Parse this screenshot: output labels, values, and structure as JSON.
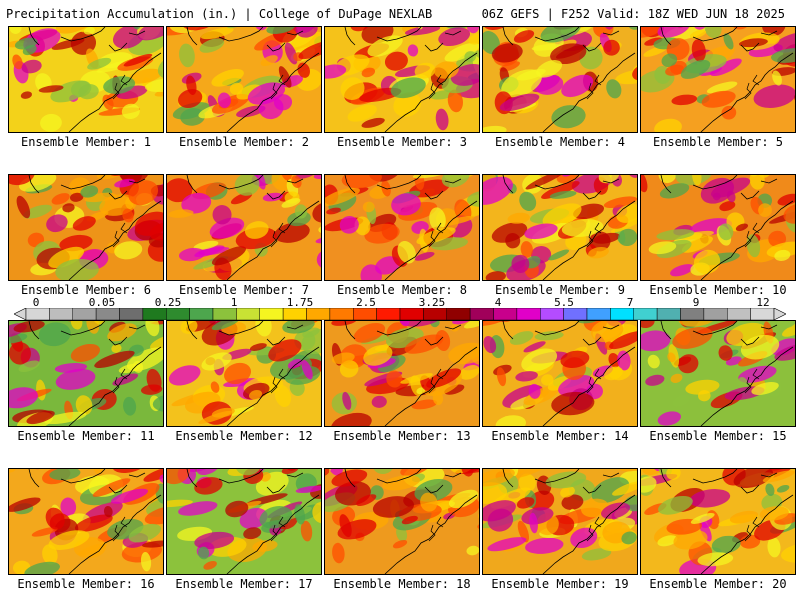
{
  "header": {
    "left": "Precipitation Accumulation (in.) | College of DuPage NEXLAB",
    "right": "06Z GEFS | F252 Valid: 18Z WED JUN 18 2025"
  },
  "colorbar": {
    "tick_labels": [
      "0",
      "0.05",
      "0.25",
      "1",
      "1.75",
      "2.5",
      "3.25",
      "4",
      "5.5",
      "7",
      "9",
      "12"
    ],
    "colors": [
      "#d6d6d6",
      "#bdbdbd",
      "#a3a3a3",
      "#8a8a8a",
      "#6e6e6e",
      "#1f7a1f",
      "#2e8b2e",
      "#4da64d",
      "#8cc23c",
      "#c8e234",
      "#f5f520",
      "#ffd200",
      "#ffa800",
      "#ff7a00",
      "#ff4d00",
      "#ff1a00",
      "#e00000",
      "#b80000",
      "#900000",
      "#a0005a",
      "#c8008c",
      "#e100c8",
      "#b44cff",
      "#7070ff",
      "#40a0ff",
      "#00e0ff",
      "#40d0d0",
      "#50b0b0",
      "#808080",
      "#a0a0a0",
      "#c0c0c0",
      "#d8d8d8"
    ]
  },
  "panels": [
    {
      "label": "Ensemble Member: 1"
    },
    {
      "label": "Ensemble Member: 2"
    },
    {
      "label": "Ensemble Member: 3"
    },
    {
      "label": "Ensemble Member: 4"
    },
    {
      "label": "Ensemble Member: 5"
    },
    {
      "label": "Ensemble Member: 6"
    },
    {
      "label": "Ensemble Member: 7"
    },
    {
      "label": "Ensemble Member: 8"
    },
    {
      "label": "Ensemble Member: 9"
    },
    {
      "label": "Ensemble Member: 10"
    },
    {
      "label": "Ensemble Member: 11"
    },
    {
      "label": "Ensemble Member: 12"
    },
    {
      "label": "Ensemble Member: 13"
    },
    {
      "label": "Ensemble Member: 14"
    },
    {
      "label": "Ensemble Member: 15"
    },
    {
      "label": "Ensemble Member: 16"
    },
    {
      "label": "Ensemble Member: 17"
    },
    {
      "label": "Ensemble Member: 18"
    },
    {
      "label": "Ensemble Member: 19"
    },
    {
      "label": "Ensemble Member: 20"
    }
  ]
}
